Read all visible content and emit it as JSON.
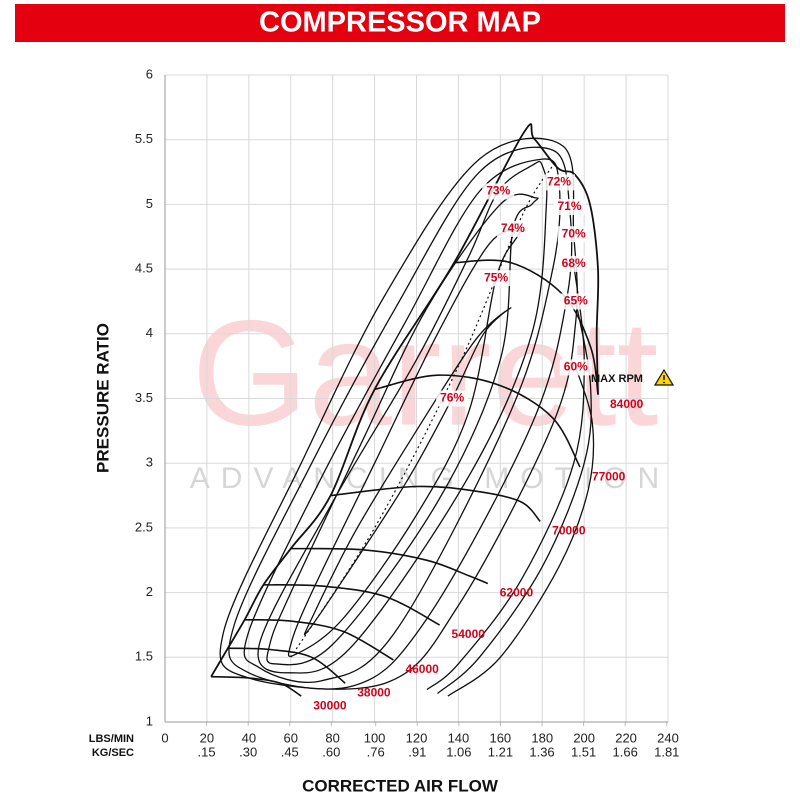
{
  "chart_data": {
    "type": "compressor_map",
    "title": "COMPRESSOR MAP",
    "ylabel": "PRESSURE RATIO",
    "xlabel": "CORRECTED AIR FLOW",
    "x_unit": "LBS/MIN",
    "x2_unit": "KG/SEC",
    "annotation": "MAX RPM",
    "watermark": {
      "brand": "Garrett",
      "tagline": "ADVANCING MOTION"
    },
    "xlim": [
      0,
      240
    ],
    "xticks": [
      0,
      20,
      40,
      60,
      80,
      100,
      120,
      140,
      160,
      180,
      200,
      220,
      240
    ],
    "x2lim": [
      0,
      1.8144
    ],
    "x2ticks": [
      {
        "value": 0.15,
        "label": ".15"
      },
      {
        "value": 0.3,
        "label": ".30"
      },
      {
        "value": 0.45,
        "label": ".45"
      },
      {
        "value": 0.6,
        "label": ".60"
      },
      {
        "value": 0.76,
        "label": ".76"
      },
      {
        "value": 0.91,
        "label": ".91"
      },
      1.06,
      1.21,
      1.36,
      1.51,
      1.66,
      1.81
    ],
    "ylim": [
      1,
      6
    ],
    "yticks": [
      1,
      1.5,
      2,
      2.5,
      3,
      3.5,
      4,
      4.5,
      5,
      5.5,
      6
    ],
    "grid": true,
    "line_color": "#111111",
    "label_color": "#d0021b",
    "boundary": {
      "points": [
        [
          22,
          1.35
        ],
        [
          30,
          1.57
        ],
        [
          38,
          1.79
        ],
        [
          47,
          2.06
        ],
        [
          60,
          2.34
        ],
        [
          79,
          2.75
        ],
        [
          100,
          3.57
        ],
        [
          138,
          4.55
        ],
        [
          171,
          5.55
        ],
        [
          176,
          5.51
        ],
        [
          187.5,
          5.28
        ],
        [
          195.6,
          5.23
        ],
        [
          202.8,
          5.0
        ],
        [
          206.6,
          4.5
        ],
        [
          206,
          4.0
        ],
        [
          206.6,
          3.53
        ]
      ]
    },
    "peak_efficiency_line": {
      "points": [
        [
          60,
          1.5
        ],
        [
          100,
          2.5
        ],
        [
          140,
          3.75
        ],
        [
          170,
          4.9
        ],
        [
          185,
          5.3
        ]
      ]
    },
    "speed_lines": [
      {
        "rpm": 30000,
        "points": [
          [
            22,
            1.35
          ],
          [
            40,
            1.34
          ],
          [
            55,
            1.3
          ],
          [
            65,
            1.2
          ]
        ]
      },
      {
        "rpm": 38000,
        "points": [
          [
            30,
            1.57
          ],
          [
            50,
            1.56
          ],
          [
            70,
            1.5
          ],
          [
            86,
            1.3
          ]
        ]
      },
      {
        "rpm": 46000,
        "points": [
          [
            38,
            1.79
          ],
          [
            60,
            1.78
          ],
          [
            85,
            1.7
          ],
          [
            109,
            1.48
          ]
        ]
      },
      {
        "rpm": 54000,
        "points": [
          [
            47,
            2.06
          ],
          [
            75,
            2.05
          ],
          [
            105,
            1.97
          ],
          [
            131,
            1.75
          ]
        ]
      },
      {
        "rpm": 62000,
        "points": [
          [
            60,
            2.34
          ],
          [
            95,
            2.33
          ],
          [
            125,
            2.25
          ],
          [
            145,
            2.13
          ],
          [
            154,
            2.07
          ]
        ]
      },
      {
        "rpm": 70000,
        "points": [
          [
            79,
            2.75
          ],
          [
            120,
            2.82
          ],
          [
            150,
            2.78
          ],
          [
            170,
            2.7
          ],
          [
            179,
            2.55
          ]
        ]
      },
      {
        "rpm": 77000,
        "points": [
          [
            100,
            3.57
          ],
          [
            130,
            3.68
          ],
          [
            160,
            3.6
          ],
          [
            185,
            3.35
          ],
          [
            198,
            2.97
          ]
        ]
      },
      {
        "rpm": 84000,
        "points": [
          [
            138,
            4.55
          ],
          [
            165,
            4.55
          ],
          [
            190,
            4.3
          ],
          [
            203,
            3.9
          ],
          [
            206.6,
            3.53
          ]
        ]
      }
    ],
    "efficiency_islands": [
      {
        "label": "76%",
        "closed": true,
        "points": [
          [
            137,
            3.5
          ],
          [
            152,
            4.0
          ],
          [
            165,
            4.2
          ],
          [
            148,
            3.95
          ],
          [
            118,
            3.2
          ],
          [
            90,
            2.45
          ],
          [
            70,
            1.8
          ],
          [
            68,
            1.7
          ],
          [
            85,
            2.1
          ],
          [
            115,
            2.85
          ]
        ]
      },
      {
        "label": "75%",
        "closed": true,
        "points": [
          [
            158,
            4.43
          ],
          [
            168,
            4.75
          ],
          [
            170,
            4.8
          ],
          [
            155,
            4.7
          ],
          [
            130,
            4.0
          ],
          [
            100,
            3.0
          ],
          [
            70,
            2.0
          ],
          [
            60,
            1.6
          ],
          [
            62,
            1.52
          ],
          [
            85,
            1.8
          ],
          [
            120,
            2.6
          ],
          [
            145,
            3.4
          ]
        ]
      },
      {
        "label": "74%",
        "closed": true,
        "points": [
          [
            166,
            4.81
          ],
          [
            175,
            5.0
          ],
          [
            177,
            5.05
          ],
          [
            160,
            5.0
          ],
          [
            125,
            4.2
          ],
          [
            95,
            3.2
          ],
          [
            60,
            2.0
          ],
          [
            50,
            1.6
          ],
          [
            52,
            1.45
          ],
          [
            80,
            1.6
          ],
          [
            130,
            2.7
          ],
          [
            160,
            3.8
          ]
        ]
      },
      {
        "label": "73%",
        "closed": true,
        "points": [
          [
            159,
            5.1
          ],
          [
            175,
            5.3
          ],
          [
            180,
            5.3
          ],
          [
            182,
            5.0
          ],
          [
            175,
            4.0
          ],
          [
            145,
            2.9
          ],
          [
            90,
            1.6
          ],
          [
            60,
            1.38
          ],
          [
            45,
            1.6
          ],
          [
            80,
            2.7
          ],
          [
            120,
            3.8
          ],
          [
            145,
            4.6
          ]
        ]
      },
      {
        "label": "72%",
        "closed": true,
        "points": [
          [
            188,
            5.17
          ],
          [
            185,
            4.5
          ],
          [
            165,
            3.4
          ],
          [
            110,
            1.7
          ],
          [
            75,
            1.32
          ],
          [
            45,
            1.42
          ],
          [
            40,
            1.7
          ],
          [
            75,
            2.9
          ],
          [
            115,
            4.1
          ],
          [
            150,
            5.1
          ],
          [
            180,
            5.35
          ]
        ]
      },
      {
        "label": "71%",
        "closed": true,
        "points": [
          [
            193,
            4.98
          ],
          [
            192,
            4.3
          ],
          [
            175,
            3.3
          ],
          [
            125,
            1.8
          ],
          [
            90,
            1.28
          ],
          [
            40,
            1.38
          ],
          [
            33,
            1.75
          ],
          [
            70,
            3.0
          ],
          [
            110,
            4.2
          ],
          [
            150,
            5.25
          ],
          [
            185,
            5.42
          ]
        ]
      },
      {
        "label": "70%",
        "closed": true,
        "points": [
          [
            195,
            4.77
          ],
          [
            196,
            4.1
          ],
          [
            185,
            3.3
          ],
          [
            140,
            1.9
          ],
          [
            105,
            1.3
          ],
          [
            40,
            1.34
          ],
          [
            28,
            1.7
          ],
          [
            65,
            3.0
          ],
          [
            105,
            4.3
          ],
          [
            150,
            5.35
          ],
          [
            190,
            5.45
          ]
        ]
      },
      {
        "label": "68%",
        "closed": false,
        "points": [
          [
            195,
            4.54
          ],
          [
            200,
            3.8
          ],
          [
            195,
            3.0
          ],
          [
            170,
            2.1
          ],
          [
            140,
            1.45
          ],
          [
            125,
            1.25
          ]
        ]
      },
      {
        "label": "65%",
        "closed": false,
        "points": [
          [
            196,
            4.25
          ],
          [
            203,
            3.6
          ],
          [
            200,
            3.0
          ],
          [
            180,
            2.2
          ],
          [
            150,
            1.5
          ],
          [
            130,
            1.22
          ]
        ]
      },
      {
        "label": "60%",
        "closed": false,
        "points": [
          [
            196,
            3.74
          ],
          [
            204,
            3.3
          ],
          [
            202,
            2.8
          ],
          [
            188,
            2.2
          ],
          [
            160,
            1.5
          ],
          [
            135,
            1.2
          ]
        ]
      }
    ]
  }
}
